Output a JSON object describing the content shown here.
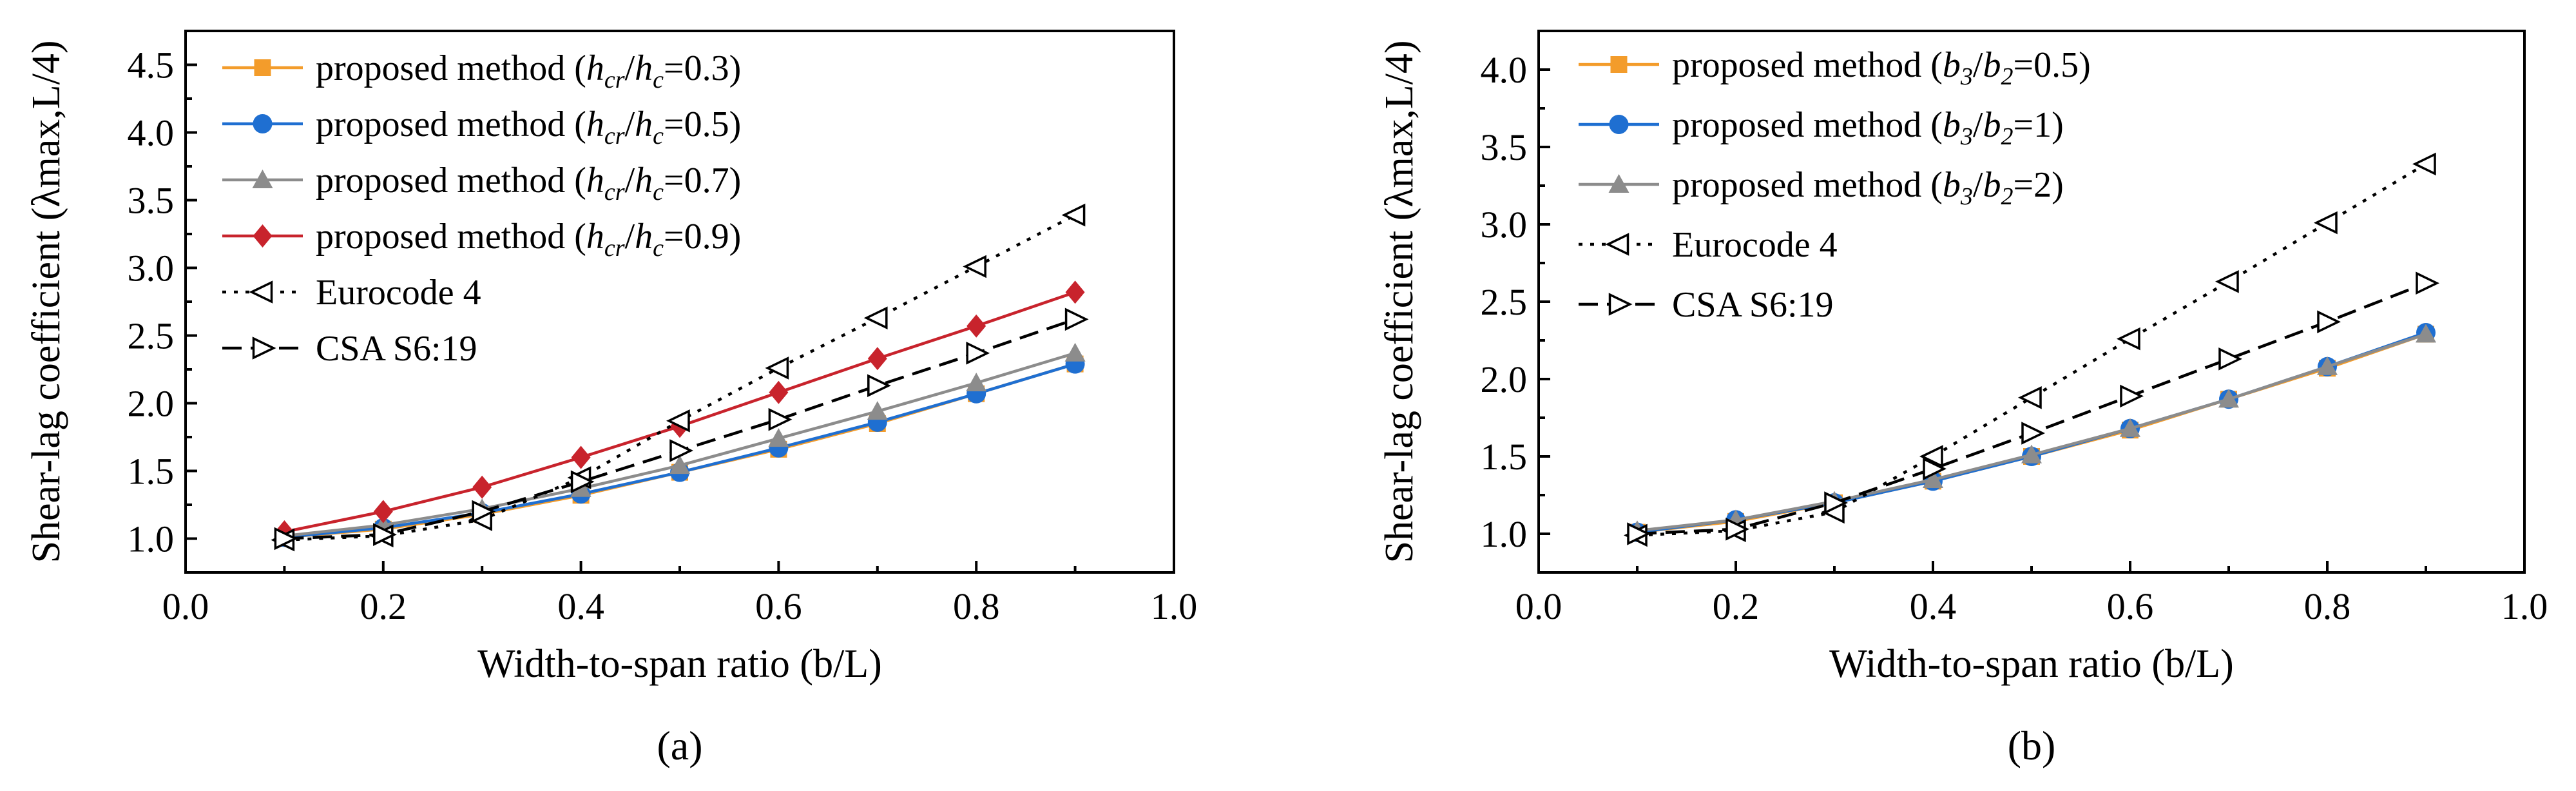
{
  "chart_data": [
    {
      "type": "line",
      "panel_label": "(a)",
      "xlabel": "Width-to-span ratio (b/L)",
      "ylabel": "Shear-lag coefficient (λmax,L/4)",
      "xlim": [
        0.0,
        1.0
      ],
      "ylim": [
        0.75,
        4.75
      ],
      "xticks": [
        0.0,
        0.2,
        0.4,
        0.6,
        0.8,
        1.0
      ],
      "xtick_labels": [
        "0.0",
        "0.2",
        "0.4",
        "0.6",
        "0.8",
        "1.0"
      ],
      "yticks": [
        1.0,
        1.5,
        2.0,
        2.5,
        3.0,
        3.5,
        4.0,
        4.5
      ],
      "ytick_labels": [
        "1.0",
        "1.5",
        "2.0",
        "2.5",
        "3.0",
        "3.5",
        "4.0",
        "4.5"
      ],
      "legend_position": "top-left",
      "x": [
        0.1,
        0.2,
        0.3,
        0.4,
        0.5,
        0.6,
        0.7,
        0.8,
        0.9
      ],
      "series": [
        {
          "name": "proposed method (hcr/hc=0.3)",
          "label_prefix": "proposed method (",
          "ratio_num": "h",
          "ratio_num_sub": "cr",
          "ratio_den": "h",
          "ratio_den_sub": "c",
          "label_value": "=0.3)",
          "color": "#f39c2b",
          "marker": "square",
          "dash": "",
          "values": [
            1.01,
            1.07,
            1.18,
            1.32,
            1.49,
            1.66,
            1.85,
            2.07,
            2.29
          ]
        },
        {
          "name": "proposed method (hcr/hc=0.5)",
          "label_prefix": "proposed method (",
          "ratio_num": "h",
          "ratio_num_sub": "cr",
          "ratio_den": "h",
          "ratio_den_sub": "c",
          "label_value": "=0.5)",
          "color": "#1f6fd1",
          "marker": "circle",
          "dash": "",
          "values": [
            1.01,
            1.08,
            1.19,
            1.33,
            1.49,
            1.67,
            1.86,
            2.07,
            2.29
          ]
        },
        {
          "name": "proposed method (hcr/hc=0.7)",
          "label_prefix": "proposed method (",
          "ratio_num": "h",
          "ratio_num_sub": "cr",
          "ratio_den": "h",
          "ratio_den_sub": "c",
          "label_value": "=0.7)",
          "color": "#8c8c8c",
          "marker": "triangle-up",
          "dash": "",
          "values": [
            1.02,
            1.1,
            1.22,
            1.37,
            1.54,
            1.74,
            1.94,
            2.15,
            2.37
          ]
        },
        {
          "name": "proposed method (hcr/hc=0.9)",
          "label_prefix": "proposed method (",
          "ratio_num": "h",
          "ratio_num_sub": "cr",
          "ratio_den": "h",
          "ratio_den_sub": "c",
          "label_value": "=0.9)",
          "color": "#c8232c",
          "marker": "diamond",
          "dash": "",
          "values": [
            1.05,
            1.2,
            1.38,
            1.6,
            1.83,
            2.08,
            2.33,
            2.57,
            2.82
          ]
        },
        {
          "name": "Eurocode 4",
          "label_prefix": "Eurocode 4",
          "color": "#000000",
          "marker": "triangle-left",
          "dash": "6 12",
          "values": [
            0.99,
            1.02,
            1.14,
            1.45,
            1.87,
            2.26,
            2.63,
            3.01,
            3.39
          ]
        },
        {
          "name": "CSA S6:19",
          "label_prefix": "CSA S6:19",
          "color": "#000000",
          "marker": "triangle-right",
          "dash": "30 14",
          "values": [
            1.0,
            1.03,
            1.2,
            1.42,
            1.65,
            1.88,
            2.13,
            2.37,
            2.62
          ]
        }
      ]
    },
    {
      "type": "line",
      "panel_label": "(b)",
      "xlabel": "Width-to-span ratio (b/L)",
      "ylabel": "Shear-lag coefficient (λmax,L/4)",
      "xlim": [
        0.0,
        1.0
      ],
      "ylim": [
        0.75,
        4.25
      ],
      "xticks": [
        0.0,
        0.2,
        0.4,
        0.6,
        0.8,
        1.0
      ],
      "xtick_labels": [
        "0.0",
        "0.2",
        "0.4",
        "0.6",
        "0.8",
        "1.0"
      ],
      "yticks": [
        1.0,
        1.5,
        2.0,
        2.5,
        3.0,
        3.5,
        4.0
      ],
      "ytick_labels": [
        "1.0",
        "1.5",
        "2.0",
        "2.5",
        "3.0",
        "3.5",
        "4.0"
      ],
      "legend_position": "top-left",
      "x": [
        0.1,
        0.2,
        0.3,
        0.4,
        0.5,
        0.6,
        0.7,
        0.8,
        0.9
      ],
      "series": [
        {
          "name": "proposed method (b3/b2=0.5)",
          "label_prefix": "proposed method (",
          "ratio_num": "b",
          "ratio_num_sub": "3",
          "ratio_den": "b",
          "ratio_den_sub": "2",
          "label_value": "=0.5)",
          "color": "#f39c2b",
          "marker": "square",
          "dash": "",
          "values": [
            1.01,
            1.08,
            1.2,
            1.34,
            1.5,
            1.67,
            1.87,
            2.07,
            2.29
          ]
        },
        {
          "name": "proposed method (b3/b2=1)",
          "label_prefix": "proposed method (",
          "ratio_num": "b",
          "ratio_num_sub": "3",
          "ratio_den": "b",
          "ratio_den_sub": "2",
          "label_value": "=1)",
          "color": "#1f6fd1",
          "marker": "circle",
          "dash": "",
          "values": [
            1.01,
            1.09,
            1.2,
            1.34,
            1.5,
            1.68,
            1.87,
            2.08,
            2.3
          ]
        },
        {
          "name": "proposed method (b3/b2=2)",
          "label_prefix": "proposed method (",
          "ratio_num": "b",
          "ratio_num_sub": "3",
          "ratio_den": "b",
          "ratio_den_sub": "2",
          "label_value": "=2)",
          "color": "#8c8c8c",
          "marker": "triangle-up",
          "dash": "",
          "values": [
            1.02,
            1.09,
            1.21,
            1.35,
            1.51,
            1.68,
            1.87,
            2.08,
            2.29
          ]
        },
        {
          "name": "Eurocode 4",
          "label_prefix": "Eurocode 4",
          "color": "#000000",
          "marker": "triangle-left",
          "dash": "6 12",
          "values": [
            0.99,
            1.02,
            1.14,
            1.5,
            1.88,
            2.26,
            2.63,
            3.01,
            3.39
          ]
        },
        {
          "name": "CSA S6:19",
          "label_prefix": "CSA S6:19",
          "color": "#000000",
          "marker": "triangle-right",
          "dash": "30 14",
          "values": [
            1.0,
            1.03,
            1.2,
            1.42,
            1.65,
            1.89,
            2.13,
            2.37,
            2.62
          ]
        }
      ]
    }
  ]
}
